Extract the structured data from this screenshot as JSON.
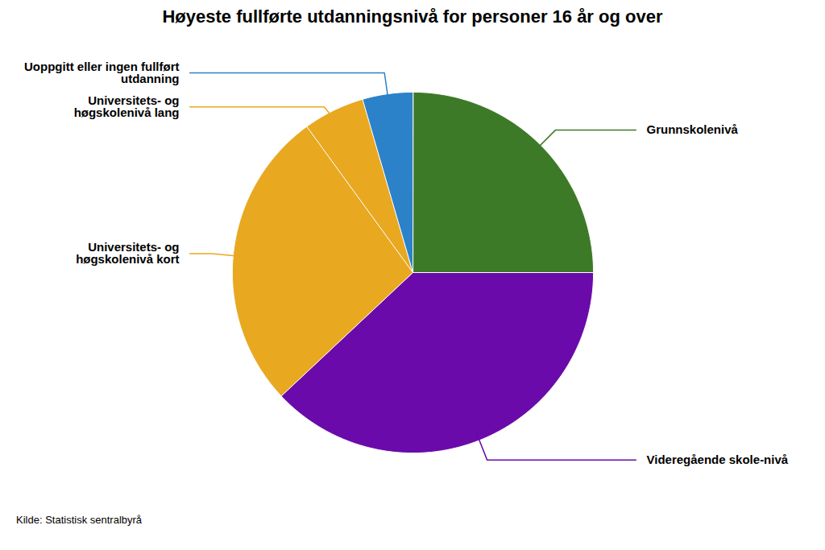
{
  "chart_data": {
    "type": "pie",
    "title": "Høyeste fullførte utdanningsnivå for personer 16 år og over",
    "categories": [
      "Grunnskolenivå",
      "Videregående skole-nivå",
      "Universitets- og\nhøgskolenivå kort",
      "Universitets- og\nhøgskolenivå lang",
      "Uoppgitt eller ingen fullført\nutdanning"
    ],
    "values": [
      25.0,
      38.0,
      27.0,
      5.5,
      4.5
    ],
    "colors": [
      "#3d7a28",
      "#6a0aaa",
      "#e8a820",
      "#e8a820",
      "#2b82c9"
    ],
    "annotations": [
      "Kilde: Statistisk sentralbyrå"
    ]
  }
}
